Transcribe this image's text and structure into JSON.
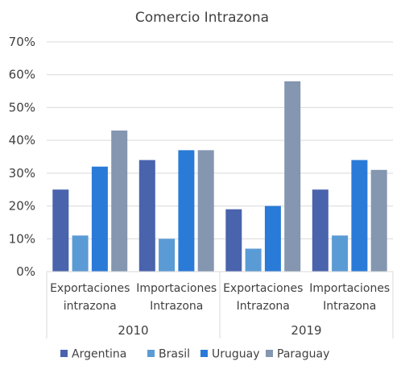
{
  "chart_data": {
    "type": "bar",
    "title": "Comercio Intrazona",
    "xlabel": "",
    "ylabel": "",
    "ylim": [
      0,
      70
    ],
    "ytick_labels": [
      "0%",
      "10%",
      "20%",
      "30%",
      "40%",
      "50%",
      "60%",
      "70%"
    ],
    "grid": true,
    "legend_position": "bottom",
    "groups": [
      {
        "label": "2010",
        "categories": [
          "Exportaciones\nintrazona",
          "Importaciones\nIntrazona"
        ]
      },
      {
        "label": "2019",
        "categories": [
          "Exportaciones\nIntrazona",
          "Importaciones\nIntrazona"
        ]
      }
    ],
    "categories": [
      [
        "Exportaciones",
        "intrazona"
      ],
      [
        "Importaciones",
        "Intrazona"
      ],
      [
        "Exportaciones",
        "Intrazona"
      ],
      [
        "Importaciones",
        "Intrazona"
      ]
    ],
    "series": [
      {
        "name": "Argentina",
        "color": "#4a63ad",
        "values": [
          25,
          34,
          19,
          25
        ]
      },
      {
        "name": "Brasil",
        "color": "#5b9bd5",
        "values": [
          11,
          10,
          7,
          11
        ]
      },
      {
        "name": "Uruguay",
        "color": "#2a7ad8",
        "values": [
          32,
          37,
          20,
          34
        ]
      },
      {
        "name": "Paraguay",
        "color": "#8496b0",
        "values": [
          43,
          37,
          58,
          31
        ]
      }
    ]
  }
}
